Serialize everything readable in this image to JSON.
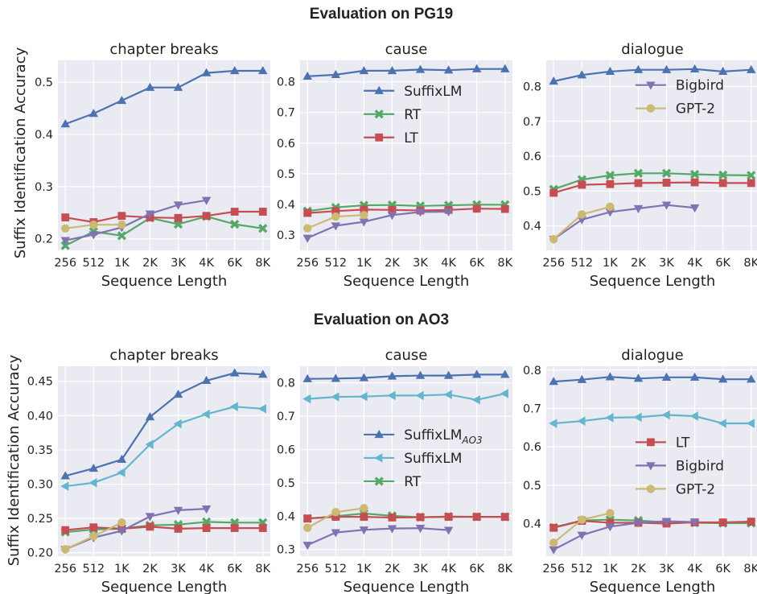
{
  "row_titles": [
    "Evaluation on PG19",
    "Evaluation on AO3"
  ],
  "ylabel": "Suffix Identification Accuracy",
  "xlabel": "Sequence Length",
  "x_categories": [
    "256",
    "512",
    "1K",
    "2K",
    "3K",
    "4K",
    "6K",
    "8K"
  ],
  "colors": {
    "SuffixLM": "#4c72b0",
    "SuffixLM_AO3": "#4c72b0",
    "SuffixLM_light": "#64b5cd",
    "RT": "#55a868",
    "LT": "#c44e52",
    "Bigbird": "#8172b2",
    "GPT-2": "#ccb974"
  },
  "chart_data": [
    {
      "type": "line",
      "row": 0,
      "col": 0,
      "title": "chapter breaks",
      "xlabel": "Sequence Length",
      "ylabel": "Suffix Identification Accuracy",
      "ylim": [
        0.178,
        0.542
      ],
      "yticks": [
        0.2,
        0.3,
        0.4,
        0.5
      ],
      "ytick_labels": [
        "0.2",
        "0.3",
        "0.4",
        "0.5"
      ],
      "categories": [
        "256",
        "512",
        "1K",
        "2K",
        "3K",
        "4K",
        "6K",
        "8K"
      ],
      "legend": [],
      "series": [
        {
          "name": "SuffixLM",
          "color": "#4c72b0",
          "marker": "triangle-up",
          "values": [
            0.42,
            0.44,
            0.465,
            0.49,
            0.49,
            0.518,
            0.522,
            0.522
          ]
        },
        {
          "name": "RT",
          "color": "#55a868",
          "marker": "x",
          "values": [
            0.187,
            0.214,
            0.206,
            0.24,
            0.228,
            0.243,
            0.228,
            0.22
          ]
        },
        {
          "name": "LT",
          "color": "#c44e52",
          "marker": "square",
          "values": [
            0.241,
            0.232,
            0.244,
            0.241,
            0.24,
            0.244,
            0.252,
            0.252
          ]
        },
        {
          "name": "Bigbird",
          "color": "#8172b2",
          "marker": "triangle-down",
          "values": [
            0.197,
            0.208,
            0.222,
            0.248,
            0.265,
            0.274,
            null,
            null
          ]
        },
        {
          "name": "GPT-2",
          "color": "#ccb974",
          "marker": "circle",
          "values": [
            0.22,
            0.227,
            0.227,
            null,
            null,
            null,
            null,
            null
          ]
        }
      ]
    },
    {
      "type": "line",
      "row": 0,
      "col": 1,
      "title": "cause",
      "xlabel": "Sequence Length",
      "ylabel": "",
      "ylim": [
        0.25,
        0.87
      ],
      "yticks": [
        0.3,
        0.4,
        0.5,
        0.6,
        0.7,
        0.8
      ],
      "ytick_labels": [
        "0.3",
        "0.4",
        "0.5",
        "0.6",
        "0.7",
        "0.8"
      ],
      "categories": [
        "256",
        "512",
        "1K",
        "2K",
        "3K",
        "4K",
        "6K",
        "8K"
      ],
      "legend": [
        "SuffixLM",
        "RT",
        "LT"
      ],
      "legend_placement": "center-right",
      "series": [
        {
          "name": "SuffixLM",
          "color": "#4c72b0",
          "marker": "triangle-up",
          "values": [
            0.818,
            0.823,
            0.836,
            0.836,
            0.84,
            0.838,
            0.842,
            0.842
          ]
        },
        {
          "name": "RT",
          "color": "#55a868",
          "marker": "x",
          "values": [
            0.378,
            0.39,
            0.397,
            0.398,
            0.395,
            0.397,
            0.399,
            0.399
          ]
        },
        {
          "name": "LT",
          "color": "#c44e52",
          "marker": "square",
          "values": [
            0.372,
            0.378,
            0.383,
            0.382,
            0.38,
            0.382,
            0.386,
            0.385
          ]
        },
        {
          "name": "Bigbird",
          "color": "#8172b2",
          "marker": "triangle-down",
          "values": [
            0.29,
            0.33,
            0.343,
            0.365,
            0.375,
            0.376,
            null,
            null
          ]
        },
        {
          "name": "GPT-2",
          "color": "#ccb974",
          "marker": "circle",
          "values": [
            0.322,
            0.36,
            0.365,
            null,
            null,
            null,
            null,
            null
          ]
        }
      ]
    },
    {
      "type": "line",
      "row": 0,
      "col": 2,
      "title": "dialogue",
      "xlabel": "Sequence Length",
      "ylabel": "",
      "ylim": [
        0.33,
        0.875
      ],
      "yticks": [
        0.4,
        0.5,
        0.6,
        0.7,
        0.8
      ],
      "ytick_labels": [
        "0.4",
        "0.5",
        "0.6",
        "0.7",
        "0.8"
      ],
      "categories": [
        "256",
        "512",
        "1K",
        "2K",
        "3K",
        "4K",
        "6K",
        "8K"
      ],
      "legend": [
        "Bigbird",
        "GPT-2"
      ],
      "legend_placement": "upper-right",
      "series": [
        {
          "name": "SuffixLM",
          "color": "#4c72b0",
          "marker": "triangle-up",
          "values": [
            0.815,
            0.833,
            0.843,
            0.848,
            0.848,
            0.85,
            0.843,
            0.848
          ]
        },
        {
          "name": "RT",
          "color": "#55a868",
          "marker": "x",
          "values": [
            0.505,
            0.533,
            0.545,
            0.551,
            0.551,
            0.548,
            0.546,
            0.545
          ]
        },
        {
          "name": "LT",
          "color": "#c44e52",
          "marker": "square",
          "values": [
            0.495,
            0.518,
            0.52,
            0.523,
            0.524,
            0.525,
            0.523,
            0.523
          ]
        },
        {
          "name": "Bigbird",
          "color": "#8172b2",
          "marker": "triangle-down",
          "values": [
            0.362,
            0.418,
            0.44,
            0.45,
            0.46,
            0.452,
            null,
            null
          ]
        },
        {
          "name": "GPT-2",
          "color": "#ccb974",
          "marker": "circle",
          "values": [
            0.362,
            0.433,
            0.455,
            null,
            null,
            null,
            null,
            null
          ]
        }
      ]
    },
    {
      "type": "line",
      "row": 1,
      "col": 0,
      "title": "chapter breaks",
      "xlabel": "Sequence Length",
      "ylabel": "Suffix Identification Accuracy",
      "ylim": [
        0.195,
        0.472
      ],
      "yticks": [
        0.2,
        0.25,
        0.3,
        0.35,
        0.4,
        0.45
      ],
      "ytick_labels": [
        "0.20",
        "0.25",
        "0.30",
        "0.35",
        "0.40",
        "0.45"
      ],
      "categories": [
        "256",
        "512",
        "1K",
        "2K",
        "3K",
        "4K",
        "6K",
        "8K"
      ],
      "legend": [],
      "series": [
        {
          "name": "SuffixLM_AO3",
          "color": "#4c72b0",
          "marker": "triangle-up",
          "values": [
            0.312,
            0.323,
            0.336,
            0.398,
            0.431,
            0.451,
            0.462,
            0.46
          ]
        },
        {
          "name": "SuffixLM",
          "color": "#64b5cd",
          "marker": "triangle-left",
          "values": [
            0.297,
            0.302,
            0.317,
            0.358,
            0.388,
            0.402,
            0.413,
            0.41
          ]
        },
        {
          "name": "RT",
          "color": "#55a868",
          "marker": "x",
          "values": [
            0.23,
            0.234,
            0.235,
            0.24,
            0.241,
            0.245,
            0.244,
            0.244
          ]
        },
        {
          "name": "LT",
          "color": "#c44e52",
          "marker": "square",
          "values": [
            0.233,
            0.237,
            0.235,
            0.238,
            0.235,
            0.236,
            0.236,
            0.236
          ]
        },
        {
          "name": "Bigbird",
          "color": "#8172b2",
          "marker": "triangle-down",
          "values": [
            0.205,
            0.222,
            0.232,
            0.253,
            0.262,
            0.264,
            null,
            null
          ]
        },
        {
          "name": "GPT-2",
          "color": "#ccb974",
          "marker": "circle",
          "values": [
            0.205,
            0.224,
            0.244,
            null,
            null,
            null,
            null,
            null
          ]
        }
      ]
    },
    {
      "type": "line",
      "row": 1,
      "col": 1,
      "title": "cause",
      "xlabel": "Sequence Length",
      "ylabel": "",
      "ylim": [
        0.28,
        0.85
      ],
      "yticks": [
        0.3,
        0.4,
        0.5,
        0.6,
        0.7,
        0.8
      ],
      "ytick_labels": [
        "0.3",
        "0.4",
        "0.5",
        "0.6",
        "0.7",
        "0.8"
      ],
      "categories": [
        "256",
        "512",
        "1K",
        "2K",
        "3K",
        "4K",
        "6K",
        "8K"
      ],
      "legend": [
        "SuffixLM_AO3",
        "SuffixLM",
        "RT"
      ],
      "legend_placement": "center-right",
      "series": [
        {
          "name": "SuffixLM_AO3",
          "color": "#4c72b0",
          "marker": "triangle-up",
          "values": [
            0.812,
            0.813,
            0.815,
            0.82,
            0.822,
            0.822,
            0.825,
            0.825
          ]
        },
        {
          "name": "SuffixLM",
          "color": "#64b5cd",
          "marker": "triangle-left",
          "values": [
            0.752,
            0.758,
            0.759,
            0.762,
            0.762,
            0.765,
            0.749,
            0.768
          ]
        },
        {
          "name": "RT",
          "color": "#55a868",
          "marker": "x",
          "values": [
            0.393,
            0.4,
            0.408,
            0.401,
            0.397,
            0.399,
            0.398,
            0.398
          ]
        },
        {
          "name": "LT",
          "color": "#c44e52",
          "marker": "square",
          "values": [
            0.393,
            0.398,
            0.398,
            0.396,
            0.397,
            0.398,
            0.398,
            0.398
          ]
        },
        {
          "name": "Bigbird",
          "color": "#8172b2",
          "marker": "triangle-down",
          "values": [
            0.313,
            0.351,
            0.359,
            0.363,
            0.364,
            0.358,
            null,
            null
          ]
        },
        {
          "name": "GPT-2",
          "color": "#ccb974",
          "marker": "circle",
          "values": [
            0.365,
            0.412,
            0.424,
            null,
            null,
            null,
            null,
            null
          ]
        }
      ]
    },
    {
      "type": "line",
      "row": 1,
      "col": 2,
      "title": "dialogue",
      "xlabel": "Sequence Length",
      "ylabel": "",
      "ylim": [
        0.315,
        0.81
      ],
      "yticks": [
        0.4,
        0.5,
        0.6,
        0.7,
        0.8
      ],
      "ytick_labels": [
        "0.4",
        "0.5",
        "0.6",
        "0.7",
        "0.8"
      ],
      "categories": [
        "256",
        "512",
        "1K",
        "2K",
        "3K",
        "4K",
        "6K",
        "8K"
      ],
      "legend": [
        "LT",
        "Bigbird",
        "GPT-2"
      ],
      "legend_placement": "center-right",
      "series": [
        {
          "name": "SuffixLM_AO3",
          "color": "#4c72b0",
          "marker": "triangle-up",
          "values": [
            0.77,
            0.775,
            0.782,
            0.778,
            0.781,
            0.781,
            0.776,
            0.776
          ]
        },
        {
          "name": "SuffixLM",
          "color": "#64b5cd",
          "marker": "triangle-left",
          "values": [
            0.661,
            0.667,
            0.676,
            0.677,
            0.683,
            0.68,
            0.661,
            0.661
          ]
        },
        {
          "name": "RT",
          "color": "#55a868",
          "marker": "x",
          "values": [
            0.39,
            0.408,
            0.41,
            0.408,
            0.403,
            0.402,
            0.401,
            0.401
          ]
        },
        {
          "name": "LT",
          "color": "#c44e52",
          "marker": "square",
          "values": [
            0.389,
            0.407,
            0.402,
            0.402,
            0.4,
            0.403,
            0.403,
            0.405
          ]
        },
        {
          "name": "Bigbird",
          "color": "#8172b2",
          "marker": "triangle-down",
          "values": [
            0.332,
            0.37,
            0.392,
            0.402,
            0.406,
            0.404,
            null,
            null
          ]
        },
        {
          "name": "GPT-2",
          "color": "#ccb974",
          "marker": "circle",
          "values": [
            0.35,
            0.41,
            0.427,
            null,
            null,
            null,
            null,
            null
          ]
        }
      ]
    }
  ]
}
